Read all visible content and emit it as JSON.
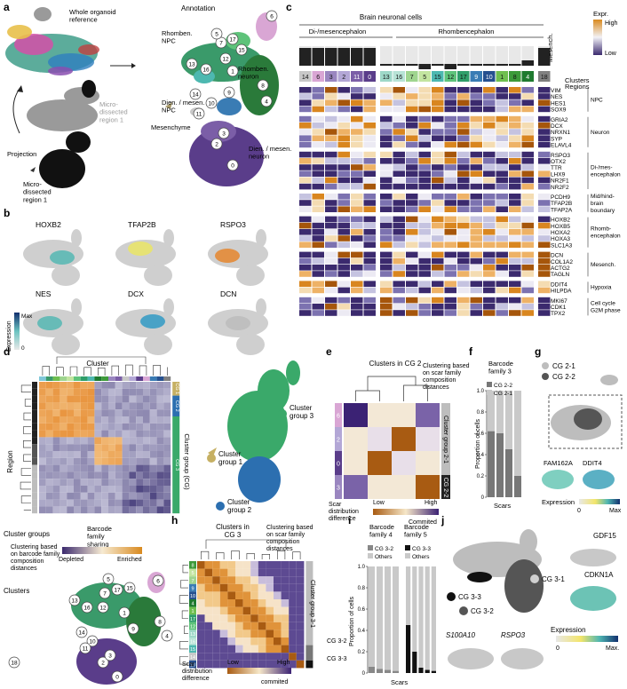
{
  "panels": {
    "a": {
      "letter": "a",
      "whole_ref": "Whole organoid\nreference",
      "annotation_title": "Annotation",
      "projection": "Projection",
      "micro_gray": "Micro-\ndissected\nregion 1",
      "micro_black": "Micro-\ndissected\nregion 1",
      "rhomben_npc": "Rhomben.\nNPC",
      "rhomben_neuron": "Rhomben.\nneuron",
      "dien_npc": "Dien. / mesen.\nNPC",
      "mesenchyme": "Mesenchyme",
      "dien_neuron": "Dien. / mesen.\nneuron",
      "cluster_ids": [
        "6",
        "7",
        "17",
        "5",
        "15",
        "13",
        "16",
        "12",
        "1",
        "8",
        "9",
        "4",
        "14",
        "10",
        "11",
        "2",
        "3",
        "0",
        "18"
      ]
    },
    "b": {
      "letter": "b",
      "genes": [
        "HOXB2",
        "TFAP2B",
        "RSPO3",
        "NES",
        "DCX",
        "DCN"
      ],
      "legend_label": "Expression",
      "legend_max": "Max",
      "legend_min": "0"
    },
    "c": {
      "letter": "c",
      "title": "Brain neuronal cells",
      "group_di": "Di-/mesencephalon",
      "group_rh": "Rhombencephalon",
      "group_mes": "Mesench.",
      "regions_label": "Regions",
      "clusters_label": "Clusters",
      "expr_label": "Expr.",
      "expr_high": "High",
      "expr_low": "Low",
      "clusters": [
        {
          "id": "14",
          "color": "#c8c8c8"
        },
        {
          "id": "6",
          "color": "#d9a6d4"
        },
        {
          "id": "3",
          "color": "#9a86c0"
        },
        {
          "id": "2",
          "color": "#b3a7d6"
        },
        {
          "id": "11",
          "color": "#7b5ea7"
        },
        {
          "id": "0",
          "color": "#5a3d8a"
        },
        {
          "id": "13",
          "color": "#9ed8c8"
        },
        {
          "id": "16",
          "color": "#b7e3d6"
        },
        {
          "id": "7",
          "color": "#9fd58f"
        },
        {
          "id": "5",
          "color": "#c3e5a0"
        },
        {
          "id": "15",
          "color": "#4db8b0"
        },
        {
          "id": "12",
          "color": "#5ec37a"
        },
        {
          "id": "17",
          "color": "#2f9e6a"
        },
        {
          "id": "9",
          "color": "#3a7cb4"
        },
        {
          "id": "10",
          "color": "#26508f"
        },
        {
          "id": "1",
          "color": "#6fbf4f"
        },
        {
          "id": "8",
          "color": "#3d9a3a"
        },
        {
          "id": "4",
          "color": "#1f7a2f"
        },
        {
          "id": "18",
          "color": "#808080"
        }
      ],
      "gene_groups": [
        {
          "name": "NPC",
          "genes": [
            "VIM",
            "NES",
            "HES1",
            "SOX9"
          ]
        },
        {
          "name": "Neuron",
          "genes": [
            "GRIA2",
            "DCX",
            "NRXN1",
            "SYP",
            "ELAVL4"
          ]
        },
        {
          "name": "Di-/mes-\nencephalon",
          "genes": [
            "RSPO3",
            "OTX2",
            "TTR",
            "LHX9",
            "NR2F1",
            "NR2F2"
          ]
        },
        {
          "name": "Mid/hind-\nbrain\nboundary",
          "genes": [
            "PCDH9",
            "TFAP2B",
            "TFAP2A"
          ]
        },
        {
          "name": "Rhomb-\nencephalon",
          "genes": [
            "HOXB2",
            "HOXB5",
            "HOXA2",
            "HOXA3",
            "SLC1A3"
          ]
        },
        {
          "name": "Mesench.",
          "genes": [
            "DCN",
            "COL1A2",
            "ACTG2",
            "TAGLN"
          ]
        },
        {
          "name": "Hypoxia",
          "genes": [
            "DDIT4",
            "HILPDA"
          ]
        },
        {
          "name": "Cell cycle\nG2M phase",
          "genes": [
            "MKI67",
            "CDK1",
            "TPX2"
          ]
        }
      ]
    },
    "d": {
      "letter": "d",
      "cluster_label": "Cluster",
      "region_label": "Region",
      "cg_label": "Cluster group (CG)",
      "cg_ids": [
        "CG 1",
        "CG 2",
        "CG 3"
      ],
      "cluster_groups_label": "Cluster groups",
      "clusters_label": "Clusters",
      "clustering_note": "Clustering based\non barcode family\ncomposition\ndistances",
      "legend_title": "Barcode\nfamily\nsharing",
      "legend_low": "Depleted",
      "legend_high": "Enriched",
      "group1": "Cluster\ngroup 1",
      "group2": "Cluster\ngroup 2",
      "group3": "Cluster\ngroup 3"
    },
    "e": {
      "letter": "e",
      "title": "Clusters in CG 2",
      "note": "Clustering based\non scar family\ncomposition\ndistances",
      "rows": [
        "6",
        "2",
        "0",
        "3"
      ],
      "group_2_1": "Cluster group 2-1",
      "group_2_2": "CG 2-2",
      "legend_title": "Scar\ndistribution\ndifference",
      "legend_low": "Low",
      "legend_high": "High",
      "legend_end": "Commited"
    },
    "f": {
      "letter": "f",
      "title": "Barcode\nfamily 3",
      "legend": [
        "CG 2-2",
        "CG 2-1"
      ],
      "ylabel": "Proportion of cells",
      "xlabel": "Scars",
      "yticks": [
        "0",
        "0.2",
        "0.4",
        "0.6",
        "0.8",
        "1.0"
      ]
    },
    "g": {
      "letter": "g",
      "legend": [
        "CG 2-1",
        "CG 2-2"
      ],
      "genes": [
        "FAM162A",
        "DDIT4"
      ],
      "legend_label": "Expression",
      "legend_min": "0",
      "legend_max": "Max"
    },
    "h": {
      "letter": "h",
      "title": "Clusters in\nCG 3",
      "note": "Clustering based\non scar family\ncomposition\ndistances",
      "group_3_1": "Cluster group 3-1",
      "group_3_2": "CG 3-2",
      "group_3_3": "CG 3-3",
      "legend_title": "Scar\ndistribution\ndifference",
      "legend_low": "Low",
      "legend_high": "High",
      "legend_end": "commited"
    },
    "i": {
      "letter": "i",
      "family4": "Barcode\nfamily 4",
      "family5": "Barcode\nfamily 5",
      "legend4": [
        "CG 3-2",
        "Others"
      ],
      "legend5": [
        "CG 3-3",
        "Others"
      ],
      "ylabel": "Proportion of cells",
      "xlabel": "Scars",
      "yticks": [
        "0",
        "0.2",
        "0.4",
        "0.6",
        "0.8",
        "1.0"
      ]
    },
    "j": {
      "letter": "j",
      "cg31": "CG 3-1",
      "cg32": "CG 3-2",
      "cg33": "CG 3-3",
      "genes": [
        "GDF15",
        "CDKN1A",
        "S100A10",
        "RSPO3"
      ],
      "legend_label": "Expression",
      "legend_min": "0",
      "legend_max": "Max."
    }
  },
  "chart_data": [
    {
      "type": "bar",
      "title": "Barcode family 3",
      "xlabel": "Scars",
      "ylabel": "Proportion of cells",
      "ylim": [
        0,
        1
      ],
      "stacked": true,
      "series": [
        {
          "name": "CG 2-2",
          "values": [
            0.62,
            0.6,
            0.45,
            0.2
          ]
        },
        {
          "name": "CG 2-1",
          "values": [
            0.38,
            0.4,
            0.55,
            0.8
          ]
        }
      ]
    },
    {
      "type": "bar",
      "title": "Barcode family 4",
      "xlabel": "Scars",
      "ylabel": "Proportion of cells",
      "ylim": [
        0,
        1
      ],
      "stacked": true,
      "series": [
        {
          "name": "CG 3-2",
          "values": [
            0.06,
            0.04,
            0.03,
            0.02
          ]
        },
        {
          "name": "Others",
          "values": [
            0.94,
            0.96,
            0.97,
            0.98
          ]
        }
      ]
    },
    {
      "type": "bar",
      "title": "Barcode family 5",
      "xlabel": "Scars",
      "ylabel": "Proportion of cells",
      "ylim": [
        0,
        1
      ],
      "stacked": true,
      "series": [
        {
          "name": "CG 3-3",
          "values": [
            0.45,
            0.2,
            0.05,
            0.03,
            0.02
          ]
        },
        {
          "name": "Others",
          "values": [
            0.55,
            0.8,
            0.95,
            0.97,
            0.98
          ]
        }
      ]
    }
  ]
}
